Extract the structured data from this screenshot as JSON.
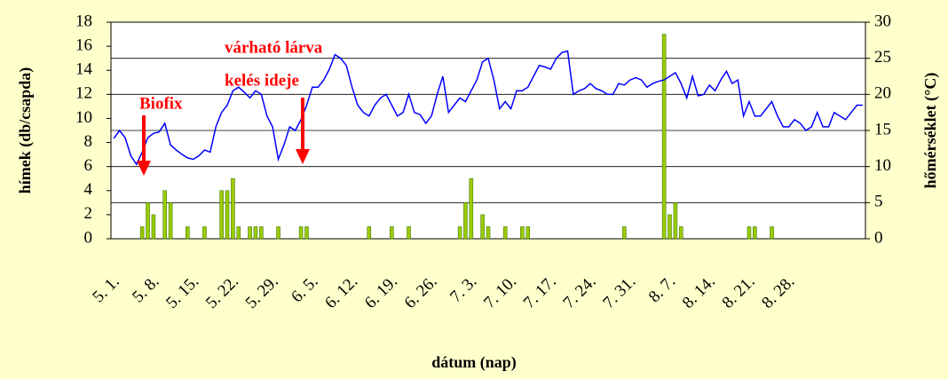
{
  "chart_data": {
    "type": "bar",
    "xlabel": "dátum (nap)",
    "ylabel": "hímek (db/csapda)",
    "y2label": "hőmérséklet (°C)",
    "annotations": [
      "Biofix",
      "várható lárva",
      "kelés ideje"
    ],
    "categories": [
      "5. 1.",
      null,
      null,
      null,
      null,
      null,
      null,
      "5. 8.",
      null,
      null,
      null,
      null,
      null,
      null,
      "5. 15.",
      null,
      null,
      null,
      null,
      null,
      null,
      "5. 22.",
      null,
      null,
      null,
      null,
      null,
      null,
      "5. 29.",
      null,
      null,
      null,
      null,
      null,
      null,
      "6. 5.",
      null,
      null,
      null,
      null,
      null,
      null,
      "6. 12.",
      null,
      null,
      null,
      null,
      null,
      null,
      "6. 19.",
      null,
      null,
      null,
      null,
      null,
      null,
      "6. 26.",
      null,
      null,
      null,
      null,
      null,
      null,
      "7. 3.",
      null,
      null,
      null,
      null,
      null,
      null,
      "7. 10.",
      null,
      null,
      null,
      null,
      null,
      null,
      "7. 17.",
      null,
      null,
      null,
      null,
      null,
      null,
      "7. 24.",
      null,
      null,
      null,
      null,
      null,
      null,
      "7. 31.",
      null,
      null,
      null,
      null,
      null,
      null,
      "8. 7.",
      null,
      null,
      null,
      null,
      null,
      null,
      "8. 14.",
      null,
      null,
      null,
      null,
      null,
      null,
      "8. 21.",
      null,
      null,
      null,
      null,
      null,
      null,
      "8. 28.",
      null,
      null,
      null,
      null,
      null,
      null,
      null,
      null,
      null,
      null,
      null,
      null,
      null
    ],
    "series": [
      {
        "name": "hímek",
        "type": "bar",
        "color": "#99cc00",
        "axis": "y",
        "values": [
          0,
          0,
          0,
          0,
          0,
          1,
          3,
          2,
          0,
          4,
          3,
          0,
          0,
          1,
          0,
          0,
          1,
          0,
          0,
          4,
          4,
          5,
          1,
          0,
          1,
          1,
          1,
          0,
          0,
          1,
          0,
          0,
          0,
          1,
          1,
          0,
          0,
          0,
          0,
          0,
          0,
          0,
          0,
          0,
          0,
          1,
          0,
          0,
          0,
          1,
          0,
          0,
          1,
          0,
          0,
          0,
          0,
          0,
          0,
          0,
          0,
          1,
          3,
          5,
          0,
          2,
          1,
          0,
          0,
          1,
          0,
          0,
          1,
          1,
          0,
          0,
          0,
          0,
          0,
          0,
          0,
          0,
          0,
          0,
          0,
          0,
          0,
          0,
          0,
          0,
          1,
          0,
          0,
          0,
          0,
          0,
          0,
          17,
          2,
          3,
          1,
          0,
          0,
          0,
          0,
          0,
          0,
          0,
          0,
          0,
          0,
          0,
          1,
          1,
          0,
          0,
          1,
          0,
          0,
          0,
          0,
          0,
          0,
          0,
          0,
          0,
          0,
          0,
          0,
          0,
          0,
          0,
          0
        ]
      },
      {
        "name": "hőmérséklet",
        "type": "line",
        "color": "#0000ff",
        "axis": "y2",
        "values": [
          13.9,
          15,
          14,
          11.5,
          10.3,
          12,
          14,
          14.6,
          14.8,
          16,
          13,
          12.3,
          11.7,
          11.2,
          11,
          11.5,
          12.3,
          12,
          15.5,
          17.5,
          18.5,
          20.5,
          21,
          20.3,
          19.5,
          20.5,
          20,
          17,
          15.5,
          11,
          13,
          15.5,
          15,
          16.5,
          18.5,
          21,
          21,
          22,
          23.5,
          25.5,
          25,
          24,
          21,
          18.5,
          17.5,
          17,
          18.5,
          19.5,
          20,
          18.5,
          17,
          17.5,
          20,
          17.5,
          17.2,
          16,
          17,
          20,
          22.5,
          17.5,
          18.5,
          19.5,
          19,
          20.5,
          22,
          24.5,
          25,
          22,
          18,
          19,
          18,
          20.5,
          20.5,
          21,
          22.5,
          24,
          23.8,
          23.5,
          25,
          25.8,
          26,
          20,
          20.5,
          20.8,
          21.5,
          20.8,
          20.5,
          20,
          20,
          21.5,
          21.3,
          22,
          22.3,
          22,
          21,
          21.5,
          21.8,
          22,
          22.5,
          23,
          21.5,
          19.5,
          22.5,
          19.8,
          20,
          21.3,
          20.5,
          22,
          23.2,
          21.5,
          22,
          17,
          19,
          17,
          17,
          18,
          19,
          17,
          15.5,
          15.5,
          16.5,
          16,
          15,
          15.5,
          17.5,
          15.5,
          15.5,
          17.5,
          17,
          16.5,
          17.5,
          18.5,
          18.5
        ]
      }
    ],
    "ylim": [
      0,
      18
    ],
    "yticks": [
      0,
      2,
      4,
      6,
      8,
      10,
      12,
      14,
      16,
      18
    ],
    "y2lim": [
      0,
      30
    ],
    "y2ticks": [
      0,
      5,
      10,
      15,
      20,
      25,
      30
    ],
    "grid": true
  }
}
